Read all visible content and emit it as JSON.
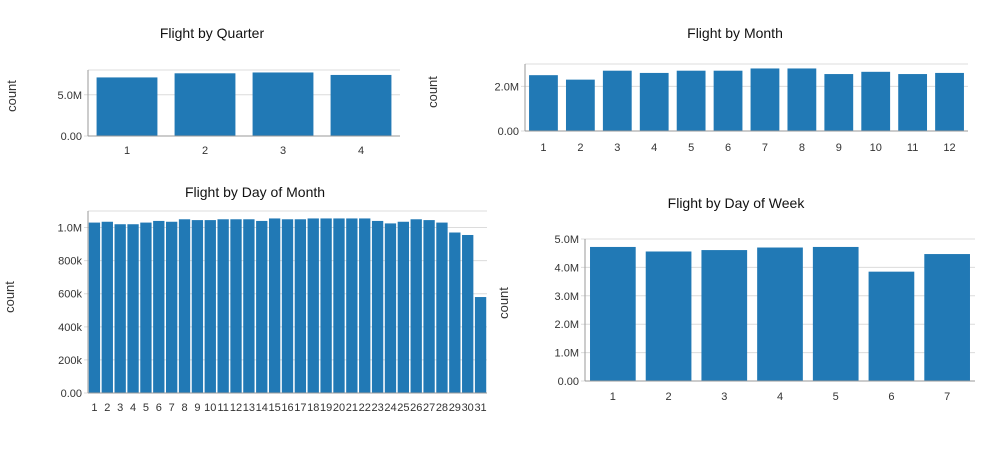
{
  "chart_data": [
    {
      "id": "quarter",
      "type": "bar",
      "title": "Flight by Quarter",
      "ylabel": "count",
      "categories": [
        "1",
        "2",
        "3",
        "4"
      ],
      "values": [
        7100000,
        7600000,
        7700000,
        7400000
      ],
      "ylim": [
        0,
        8000000
      ],
      "yticks": [
        {
          "value": 0,
          "label": "0.00"
        },
        {
          "value": 5000000,
          "label": "5.0M"
        }
      ],
      "color": "#2179b5"
    },
    {
      "id": "month",
      "type": "bar",
      "title": "Flight by Month",
      "ylabel": "count",
      "categories": [
        "1",
        "2",
        "3",
        "4",
        "5",
        "6",
        "7",
        "8",
        "9",
        "10",
        "11",
        "12"
      ],
      "values": [
        2500000,
        2300000,
        2700000,
        2600000,
        2700000,
        2700000,
        2800000,
        2800000,
        2550000,
        2650000,
        2550000,
        2600000
      ],
      "ylim": [
        0,
        3000000
      ],
      "yticks": [
        {
          "value": 0,
          "label": "0.00"
        },
        {
          "value": 2000000,
          "label": "2.0M"
        }
      ],
      "color": "#2179b5"
    },
    {
      "id": "dayofmonth",
      "type": "bar",
      "title": "Flight by Day of Month",
      "ylabel": "count",
      "categories": [
        "1",
        "2",
        "3",
        "4",
        "5",
        "6",
        "7",
        "8",
        "9",
        "10",
        "11",
        "12",
        "13",
        "14",
        "15",
        "16",
        "17",
        "18",
        "19",
        "20",
        "21",
        "22",
        "23",
        "24",
        "25",
        "26",
        "27",
        "28",
        "29",
        "30",
        "31"
      ],
      "values": [
        1030000,
        1035000,
        1020000,
        1020000,
        1030000,
        1040000,
        1035000,
        1050000,
        1045000,
        1045000,
        1050000,
        1050000,
        1050000,
        1040000,
        1055000,
        1050000,
        1050000,
        1055000,
        1055000,
        1055000,
        1055000,
        1055000,
        1040000,
        1025000,
        1035000,
        1050000,
        1045000,
        1030000,
        970000,
        955000,
        580000
      ],
      "ylim": [
        0,
        1100000
      ],
      "yticks": [
        {
          "value": 0,
          "label": "0.00"
        },
        {
          "value": 200000,
          "label": "200k"
        },
        {
          "value": 400000,
          "label": "400k"
        },
        {
          "value": 600000,
          "label": "600k"
        },
        {
          "value": 800000,
          "label": "800k"
        },
        {
          "value": 1000000,
          "label": "1.0M"
        }
      ],
      "color": "#2179b5"
    },
    {
      "id": "dayofweek",
      "type": "bar",
      "title": "Flight by Day of Week",
      "ylabel": "count",
      "categories": [
        "1",
        "2",
        "3",
        "4",
        "5",
        "6",
        "7"
      ],
      "values": [
        4720000,
        4560000,
        4610000,
        4700000,
        4720000,
        3850000,
        4470000
      ],
      "ylim": [
        0,
        5000000
      ],
      "yticks": [
        {
          "value": 0,
          "label": "0.00"
        },
        {
          "value": 1000000,
          "label": "1.0M"
        },
        {
          "value": 2000000,
          "label": "2.0M"
        },
        {
          "value": 3000000,
          "label": "3.0M"
        },
        {
          "value": 4000000,
          "label": "4.0M"
        },
        {
          "value": 5000000,
          "label": "5.0M"
        }
      ],
      "color": "#2179b5"
    }
  ]
}
